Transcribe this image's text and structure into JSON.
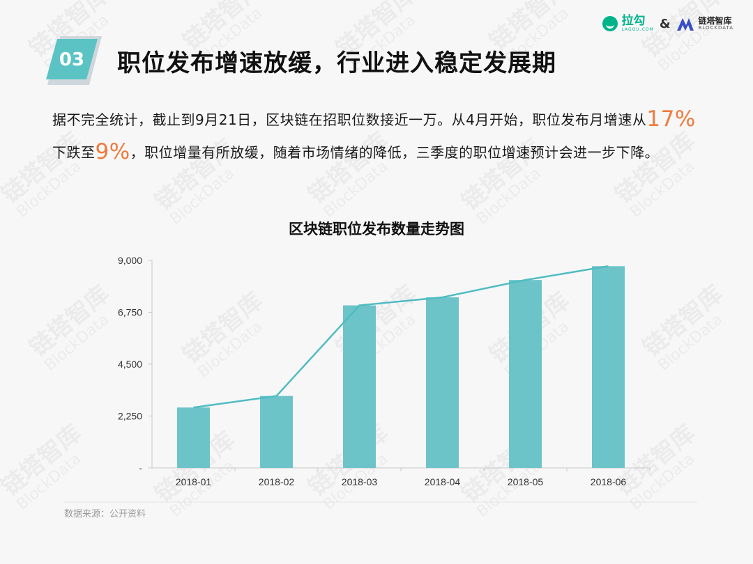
{
  "badge": {
    "number": "03",
    "color": "#5bc3c4"
  },
  "title": "职位发布增速放缓，行业进入稳定发展期",
  "logos": {
    "lagou": {
      "name": "拉勾",
      "sub": "LAGOU.COM"
    },
    "amp": "&",
    "blockdata": {
      "name": "链塔智库",
      "sub": "BLOCKDATA"
    }
  },
  "paragraph": {
    "part1": "据不完全统计，截止到9月21日，区块链在招职位数接近一万。从4月开始，职位发布月增速从",
    "hl1": "17%",
    "part2": "下跌至",
    "hl2": "9%",
    "part3": "，职位增量有所放缓，随着市场情绪的降低，三季度的职位增速预计会进一步下降。"
  },
  "watermark": {
    "cn": "链塔智库",
    "en": "BlockData"
  },
  "chart_data": {
    "type": "bar",
    "title": "区块链职位发布数量走势图",
    "categories": [
      "2018-01",
      "2018-02",
      "2018-03",
      "2018-04",
      "2018-05",
      "2018-06"
    ],
    "series": [
      {
        "values": [
          2620,
          3120,
          7050,
          7400,
          8150,
          8750
        ],
        "type": "bar",
        "color": "#6cc4c9"
      },
      {
        "values": [
          2620,
          3120,
          7050,
          7400,
          8150,
          8750
        ],
        "type": "line",
        "color": "#4fbcc2"
      }
    ],
    "y_ticks": [
      "9,000",
      "6,750",
      "4,500",
      "2,250",
      "-"
    ],
    "y_tick_values": [
      9000,
      6750,
      4500,
      2250,
      0
    ],
    "ylim": [
      0,
      9000
    ],
    "grid": false,
    "legend": "none"
  },
  "source": "数据来源：公开资料"
}
